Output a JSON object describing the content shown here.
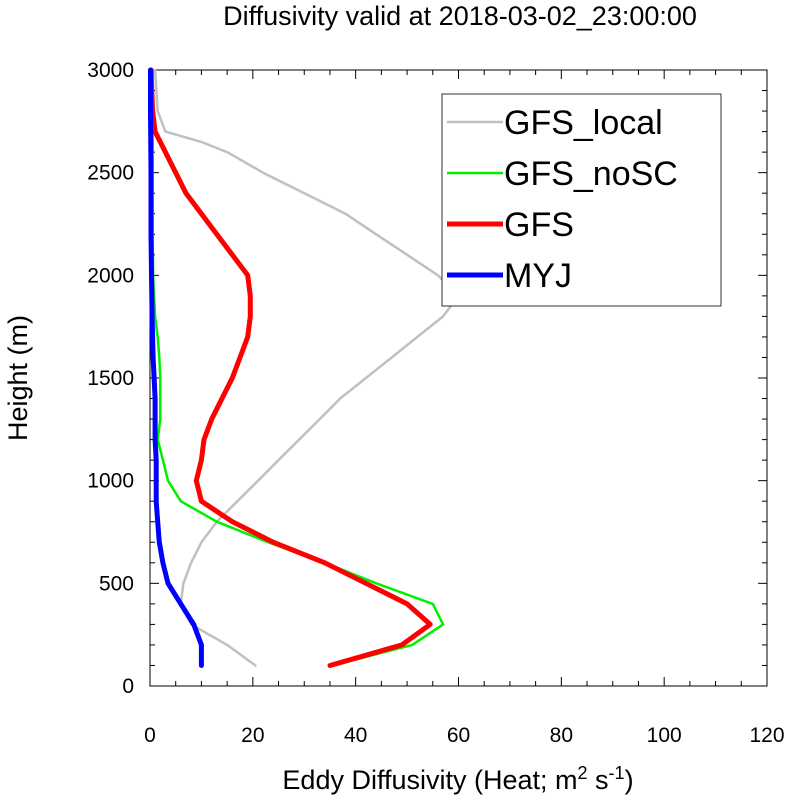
{
  "chart_data": {
    "type": "line",
    "title": "Diffusivity valid at 2018-03-02_23:00:00",
    "xlabel": "Eddy Diffusivity (Heat; m",
    "xlabel_sup1": "2",
    "xlabel_mid": " s",
    "xlabel_sup2": "-1",
    "xlabel_end": ")",
    "ylabel": "Height (m)",
    "xlim": [
      0,
      120
    ],
    "ylim": [
      0,
      3000
    ],
    "xticks": [
      "0",
      "20",
      "40",
      "60",
      "80",
      "100",
      "120"
    ],
    "yticks": [
      "0",
      "500",
      "1000",
      "1500",
      "2000",
      "2500",
      "3000"
    ],
    "legend_position": "top-right",
    "series": [
      {
        "name": "GFS_local",
        "color": "#c0c0c0",
        "width": "thin",
        "points": [
          [
            20.5,
            100
          ],
          [
            15,
            200
          ],
          [
            8,
            300
          ],
          [
            6,
            400
          ],
          [
            6.5,
            500
          ],
          [
            8,
            600
          ],
          [
            10,
            700
          ],
          [
            13,
            800
          ],
          [
            17,
            900
          ],
          [
            21,
            1000
          ],
          [
            25,
            1100
          ],
          [
            29,
            1200
          ],
          [
            33,
            1300
          ],
          [
            37,
            1400
          ],
          [
            42,
            1500
          ],
          [
            47,
            1600
          ],
          [
            52,
            1700
          ],
          [
            57,
            1800
          ],
          [
            60,
            1900
          ],
          [
            56,
            2000
          ],
          [
            50,
            2100
          ],
          [
            44,
            2200
          ],
          [
            38,
            2300
          ],
          [
            30,
            2400
          ],
          [
            22,
            2500
          ],
          [
            15,
            2600
          ],
          [
            10,
            2650
          ],
          [
            3,
            2700
          ],
          [
            1.5,
            2800
          ],
          [
            1,
            3000
          ]
        ]
      },
      {
        "name": "GFS_noSC",
        "color": "#00f000",
        "width": "thin",
        "points": [
          [
            35.5,
            100
          ],
          [
            51,
            200
          ],
          [
            57,
            300
          ],
          [
            55,
            400
          ],
          [
            44,
            500
          ],
          [
            34,
            600
          ],
          [
            23,
            700
          ],
          [
            13,
            800
          ],
          [
            6,
            900
          ],
          [
            3.5,
            1000
          ],
          [
            2.5,
            1100
          ],
          [
            1.5,
            1200
          ],
          [
            2,
            1300
          ],
          [
            2,
            1400
          ],
          [
            2,
            1500
          ],
          [
            1.8,
            1600
          ],
          [
            1.5,
            1700
          ],
          [
            1,
            1800
          ],
          [
            0.8,
            1900
          ],
          [
            0.6,
            2000
          ],
          [
            0.5,
            2200
          ],
          [
            0.5,
            2400
          ],
          [
            0.5,
            2600
          ],
          [
            0.5,
            2800
          ],
          [
            0.5,
            3000
          ]
        ]
      },
      {
        "name": "GFS",
        "color": "#ff0000",
        "width": "thick",
        "points": [
          [
            35,
            100
          ],
          [
            49,
            200
          ],
          [
            54.5,
            300
          ],
          [
            50,
            400
          ],
          [
            42,
            500
          ],
          [
            34,
            600
          ],
          [
            24,
            700
          ],
          [
            16,
            800
          ],
          [
            10,
            900
          ],
          [
            9,
            1000
          ],
          [
            10,
            1100
          ],
          [
            10.5,
            1200
          ],
          [
            12,
            1300
          ],
          [
            14,
            1400
          ],
          [
            16,
            1500
          ],
          [
            17.5,
            1600
          ],
          [
            19,
            1700
          ],
          [
            19.5,
            1800
          ],
          [
            19.5,
            1900
          ],
          [
            19,
            2000
          ],
          [
            16,
            2100
          ],
          [
            13,
            2200
          ],
          [
            10,
            2300
          ],
          [
            7,
            2400
          ],
          [
            5,
            2500
          ],
          [
            3,
            2600
          ],
          [
            1,
            2700
          ],
          [
            0.5,
            2800
          ],
          [
            0.2,
            3000
          ]
        ]
      },
      {
        "name": "MYJ",
        "color": "#0000ff",
        "width": "thick",
        "points": [
          [
            10,
            100
          ],
          [
            10,
            200
          ],
          [
            8.5,
            300
          ],
          [
            6,
            400
          ],
          [
            3.5,
            500
          ],
          [
            2.5,
            600
          ],
          [
            1.8,
            700
          ],
          [
            1.5,
            800
          ],
          [
            1.2,
            900
          ],
          [
            1.2,
            1000
          ],
          [
            1.2,
            1100
          ],
          [
            1,
            1200
          ],
          [
            1,
            1300
          ],
          [
            1,
            1400
          ],
          [
            0.8,
            1500
          ],
          [
            0.6,
            1600
          ],
          [
            0.5,
            1700
          ],
          [
            0.4,
            1800
          ],
          [
            0.3,
            2000
          ],
          [
            0.2,
            2200
          ],
          [
            0.2,
            2500
          ],
          [
            0.1,
            2800
          ],
          [
            0.1,
            3000
          ]
        ]
      }
    ]
  }
}
